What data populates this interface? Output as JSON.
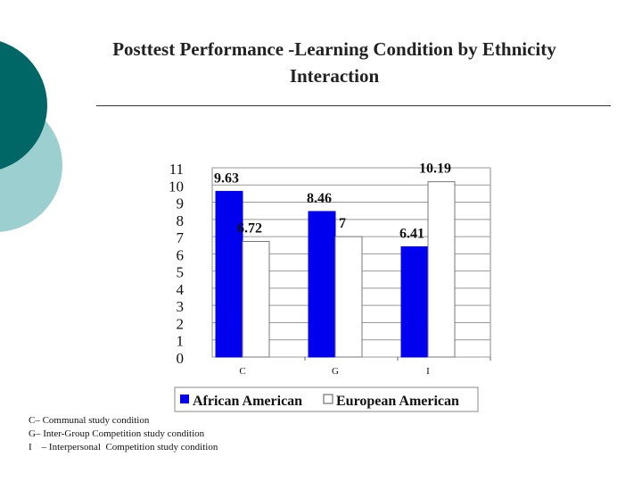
{
  "slide": {
    "title_line1": "Posttest Performance -Learning Condition by Ethnicity",
    "title_line2": "Interaction",
    "footnotes": [
      "C– Communal study condition",
      "G– Inter-Group Competition study condition",
      "I    – Interpersonal  Competition study condition"
    ]
  },
  "colors": {
    "accent_dark": "#006666",
    "accent_light": "#9ccfd0",
    "series_african": "#0000ee",
    "series_european": "#ffffff"
  },
  "chart_data": {
    "type": "bar",
    "categories": [
      "C",
      "G",
      "I"
    ],
    "series": [
      {
        "name": "African American",
        "values": [
          9.63,
          8.46,
          6.41
        ],
        "labels": [
          "9.63",
          "8.46",
          "6.41"
        ]
      },
      {
        "name": "European American",
        "values": [
          6.72,
          7,
          10.19
        ],
        "labels": [
          "6.72",
          "7",
          "10.19"
        ]
      }
    ],
    "y_ticks": [
      "0",
      "1",
      "2",
      "3",
      "4",
      "5",
      "6",
      "7",
      "8",
      "9",
      "10",
      "11"
    ],
    "ylim": [
      0,
      11
    ],
    "grid": true,
    "legend_position": "bottom"
  }
}
